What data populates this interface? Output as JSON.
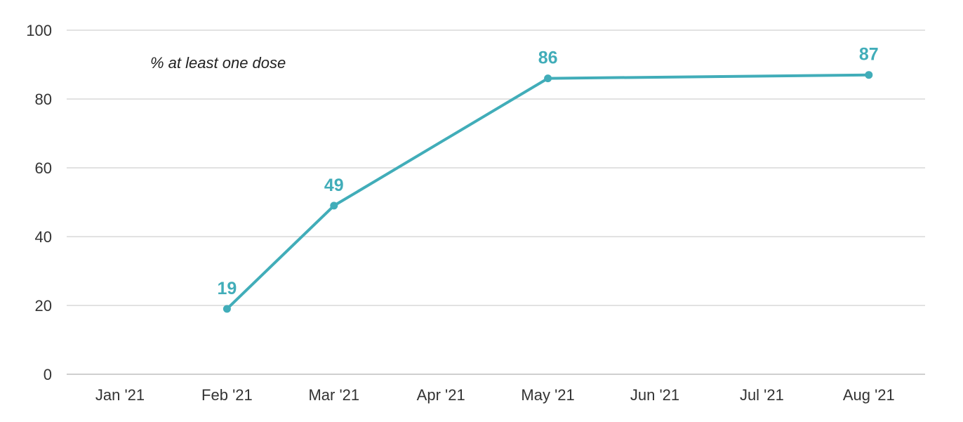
{
  "chart_data": {
    "type": "line",
    "categories": [
      "Jan '21",
      "Feb '21",
      "Mar '21",
      "Apr '21",
      "May '21",
      "Jun '21",
      "Jul '21",
      "Aug '21"
    ],
    "series": [
      {
        "x": [
          "Feb '21",
          "Mar '21",
          "May '21",
          "Aug '21"
        ],
        "values": [
          19,
          49,
          86,
          87
        ],
        "data_labels": [
          "19",
          "49",
          "86",
          "87"
        ],
        "color": "#41adb9"
      }
    ],
    "annotation": "% at least one dose",
    "title": "",
    "xlabel": "",
    "ylabel": "",
    "ylim": [
      0,
      100
    ],
    "yticks": [
      "0",
      "20",
      "40",
      "60",
      "80",
      "100"
    ],
    "grid": true,
    "legend": "none"
  }
}
